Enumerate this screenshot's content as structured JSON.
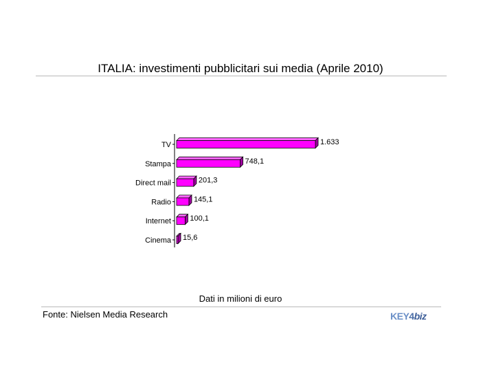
{
  "header": {
    "title": "ITALIA: investimenti pubblicitari sui media (Aprile 2010)"
  },
  "footer": {
    "note": "Dati in milioni di euro",
    "source": "Fonte: Nielsen Media Research",
    "logo": {
      "part1": "KEY",
      "part2": "4",
      "part3": "biz"
    }
  },
  "colors": {
    "bar_front": "#ff00ff",
    "bar_top": "#ff66ff",
    "bar_side": "#a000a0",
    "bar_edge": "#000000"
  },
  "chart_data": {
    "type": "bar",
    "orientation": "horizontal",
    "bar_style": "3d",
    "title": "ITALIA: investimenti pubblicitari sui media (Aprile 2010)",
    "categories": [
      "TV",
      "Stampa",
      "Direct mail",
      "Radio",
      "Internet",
      "Cinema"
    ],
    "values": [
      1633,
      748.1,
      201.3,
      145.1,
      100.1,
      15.6
    ],
    "data_labels": [
      "1.633",
      "748,1",
      "201,3",
      "145,1",
      "100,1",
      "15,6"
    ],
    "unit_note": "Dati in milioni di euro",
    "xlim": [
      0,
      1633
    ],
    "grid": false,
    "legend": "none"
  }
}
